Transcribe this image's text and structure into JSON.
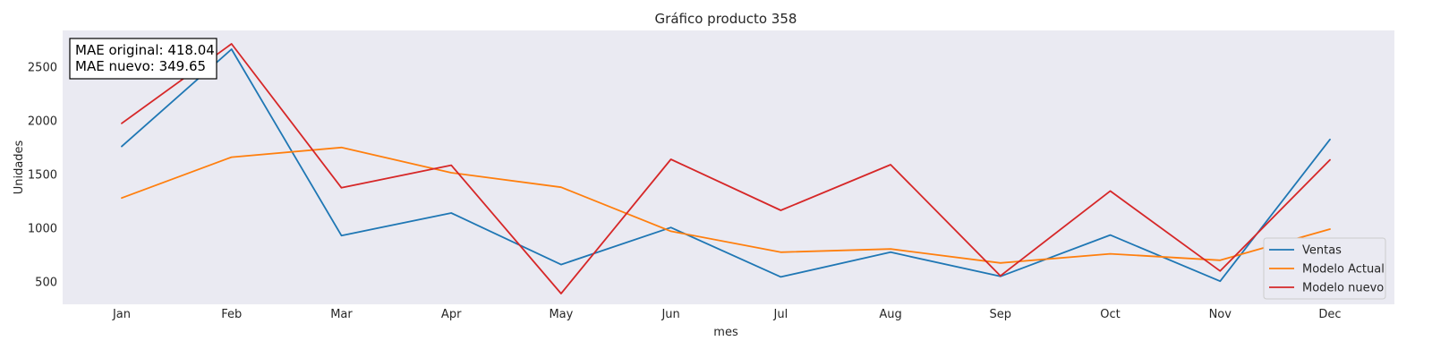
{
  "chart_data": {
    "type": "line",
    "title": "Gráfico producto 358",
    "xlabel": "mes",
    "ylabel": "Unidades",
    "categories": [
      "Jan",
      "Feb",
      "Mar",
      "Apr",
      "May",
      "Jun",
      "Jul",
      "Aug",
      "Sep",
      "Oct",
      "Nov",
      "Dec"
    ],
    "yticks": [
      500,
      1000,
      1500,
      2000,
      2500
    ],
    "ylim": [
      290,
      2840
    ],
    "grid": false,
    "legend_position": "lower-right",
    "series": [
      {
        "name": "Ventas",
        "color": "#1f77b4",
        "values": [
          1760,
          2665,
          930,
          1140,
          660,
          1005,
          545,
          775,
          550,
          935,
          505,
          1825
        ]
      },
      {
        "name": "Modelo Actual",
        "color": "#ff7f0e",
        "values": [
          1280,
          1660,
          1750,
          1515,
          1380,
          970,
          775,
          805,
          675,
          760,
          700,
          990
        ]
      },
      {
        "name": "Modelo nuevo",
        "color": "#d62728",
        "values": [
          1975,
          2715,
          1375,
          1585,
          390,
          1640,
          1165,
          1590,
          555,
          1345,
          600,
          1635
        ]
      }
    ],
    "annotation": {
      "line1": "MAE original: 418.04",
      "line2": "MAE nuevo: 349.65"
    }
  }
}
